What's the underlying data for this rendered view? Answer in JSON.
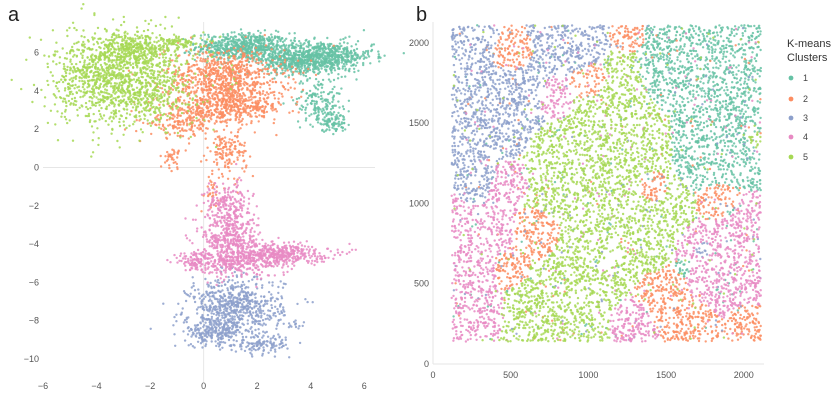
{
  "panels": {
    "a_letter": "a",
    "b_letter": "b"
  },
  "legend": {
    "title_line1": "K-means",
    "title_line2": "Clusters",
    "items": [
      {
        "label": "1",
        "color": "#66c2a5"
      },
      {
        "label": "2",
        "color": "#fc8d62"
      },
      {
        "label": "3",
        "color": "#8da0cb"
      },
      {
        "label": "4",
        "color": "#e78ac3"
      },
      {
        "label": "5",
        "color": "#a6d854"
      }
    ]
  },
  "chart_data": [
    {
      "type": "scatter",
      "title": "",
      "xlabel": "",
      "ylabel": "",
      "xlim": [
        -6,
        6.4
      ],
      "ylim": [
        -11.2,
        7.6
      ],
      "xticks": [
        -6,
        -4,
        -2,
        0,
        2,
        4,
        6
      ],
      "yticks": [
        -10,
        -8,
        -6,
        -4,
        -2,
        0,
        2,
        4,
        6
      ],
      "xtick_labels": [
        "−6",
        "−4",
        "−2",
        "0",
        "2",
        "4",
        "6"
      ],
      "ytick_labels": [
        "−10",
        "−8",
        "−6",
        "−4",
        "−2",
        "0",
        "2",
        "4",
        "6"
      ],
      "zero_lines": true,
      "series": [
        {
          "cluster": "1",
          "color": "#66c2a5",
          "regions": [
            [
              1.5,
              6.3,
              1.1,
              0.45,
              650
            ],
            [
              4.4,
              5.8,
              1.2,
              0.5,
              700
            ],
            [
              3.3,
              5.5,
              0.7,
              0.4,
              250
            ],
            [
              4.3,
              3.5,
              0.55,
              0.8,
              160
            ],
            [
              4.8,
              2.4,
              0.35,
              0.35,
              90
            ]
          ]
        },
        {
          "cluster": "2",
          "color": "#fc8d62",
          "regions": [
            [
              0.8,
              4.7,
              1.4,
              0.95,
              750
            ],
            [
              1.0,
              3.2,
              1.3,
              0.55,
              450
            ],
            [
              -0.8,
              2.4,
              0.8,
              0.55,
              180
            ],
            [
              0.9,
              0.8,
              0.45,
              0.75,
              140
            ],
            [
              -1.2,
              0.5,
              0.2,
              0.35,
              35
            ],
            [
              0.3,
              -1.2,
              0.2,
              0.55,
              30
            ]
          ]
        },
        {
          "cluster": "3",
          "color": "#8da0cb",
          "regions": [
            [
              1.2,
              -7.3,
              1.1,
              0.95,
              650
            ],
            [
              0.4,
              -8.6,
              0.7,
              0.45,
              220
            ],
            [
              2.3,
              -9.2,
              0.7,
              0.3,
              110
            ],
            [
              3.4,
              -8.2,
              0.2,
              0.1,
              12
            ]
          ]
        },
        {
          "cluster": "4",
          "color": "#e78ac3",
          "regions": [
            [
              0.9,
              -2.2,
              0.55,
              0.9,
              260
            ],
            [
              1.0,
              -3.7,
              0.65,
              0.6,
              250
            ],
            [
              2.6,
              -4.5,
              1.3,
              0.35,
              450
            ],
            [
              1.1,
              -5.0,
              1.1,
              0.45,
              280
            ],
            [
              -0.3,
              -4.9,
              0.4,
              0.3,
              80
            ]
          ]
        },
        {
          "cluster": "5",
          "color": "#a6d854",
          "regions": [
            [
              -3.0,
              4.5,
              1.6,
              1.5,
              1300
            ],
            [
              -2.7,
              6.3,
              1.0,
              0.55,
              300
            ],
            [
              -0.8,
              6.5,
              0.6,
              0.25,
              70
            ],
            [
              -4.6,
              5.1,
              0.35,
              0.15,
              30
            ]
          ]
        }
      ]
    },
    {
      "type": "scatter",
      "title": "",
      "xlabel": "",
      "ylabel": "",
      "xlim": [
        0,
        2130
      ],
      "ylim": [
        0,
        2130
      ],
      "xticks": [
        0,
        500,
        1000,
        1500,
        2000
      ],
      "yticks": [
        0,
        500,
        1000,
        1500,
        2000
      ],
      "xtick_labels": [
        "0",
        "500",
        "1000",
        "1500",
        "2000"
      ],
      "ytick_labels": [
        "0",
        "500",
        "1000",
        "1500",
        "2000"
      ],
      "zero_lines": false,
      "legend": "right",
      "domain_x": [
        120,
        2110
      ],
      "domain_y": [
        140,
        2110
      ],
      "total_points": 9000,
      "cluster_seeds": [
        {
          "x": 1800,
          "y": 1850,
          "c": 0,
          "w": 2.5
        },
        {
          "x": 1850,
          "y": 1500,
          "c": 0,
          "w": 2.5
        },
        {
          "x": 1550,
          "y": 1750,
          "c": 0,
          "w": 1.5
        },
        {
          "x": 1620,
          "y": 600,
          "c": 0,
          "w": 0.5
        },
        {
          "x": 1900,
          "y": 950,
          "c": 0,
          "w": 0.3
        },
        {
          "x": 700,
          "y": 800,
          "c": 1,
          "w": 1.2
        },
        {
          "x": 500,
          "y": 600,
          "c": 1,
          "w": 1.0
        },
        {
          "x": 1500,
          "y": 400,
          "c": 1,
          "w": 1.5
        },
        {
          "x": 1700,
          "y": 250,
          "c": 1,
          "w": 1.2
        },
        {
          "x": 2000,
          "y": 250,
          "c": 1,
          "w": 1.0
        },
        {
          "x": 1400,
          "y": 1100,
          "c": 1,
          "w": 0.8
        },
        {
          "x": 500,
          "y": 1900,
          "c": 1,
          "w": 0.8
        },
        {
          "x": 1000,
          "y": 1750,
          "c": 1,
          "w": 0.8
        },
        {
          "x": 1850,
          "y": 1000,
          "c": 1,
          "w": 0.8
        },
        {
          "x": 1250,
          "y": 2050,
          "c": 1,
          "w": 0.6
        },
        {
          "x": 250,
          "y": 1550,
          "c": 2,
          "w": 2.0
        },
        {
          "x": 500,
          "y": 1700,
          "c": 2,
          "w": 1.5
        },
        {
          "x": 900,
          "y": 2000,
          "c": 2,
          "w": 1.2
        },
        {
          "x": 250,
          "y": 1950,
          "c": 2,
          "w": 1.0
        },
        {
          "x": 300,
          "y": 1150,
          "c": 2,
          "w": 1.0
        },
        {
          "x": 1750,
          "y": 700,
          "c": 2,
          "w": 0.5
        },
        {
          "x": 250,
          "y": 700,
          "c": 3,
          "w": 2.0
        },
        {
          "x": 250,
          "y": 350,
          "c": 3,
          "w": 1.5
        },
        {
          "x": 450,
          "y": 1100,
          "c": 3,
          "w": 1.0
        },
        {
          "x": 1850,
          "y": 550,
          "c": 3,
          "w": 2.0
        },
        {
          "x": 2000,
          "y": 800,
          "c": 3,
          "w": 1.5
        },
        {
          "x": 1300,
          "y": 250,
          "c": 3,
          "w": 1.2
        },
        {
          "x": 800,
          "y": 1650,
          "c": 3,
          "w": 0.8
        },
        {
          "x": 1100,
          "y": 1000,
          "c": 4,
          "w": 3.0
        },
        {
          "x": 1200,
          "y": 1450,
          "c": 4,
          "w": 2.5
        },
        {
          "x": 800,
          "y": 350,
          "c": 4,
          "w": 2.5
        },
        {
          "x": 1000,
          "y": 650,
          "c": 4,
          "w": 2.5
        },
        {
          "x": 1400,
          "y": 700,
          "c": 4,
          "w": 1.0
        },
        {
          "x": 2080,
          "y": 1400,
          "c": 4,
          "w": 0.5
        }
      ]
    }
  ]
}
